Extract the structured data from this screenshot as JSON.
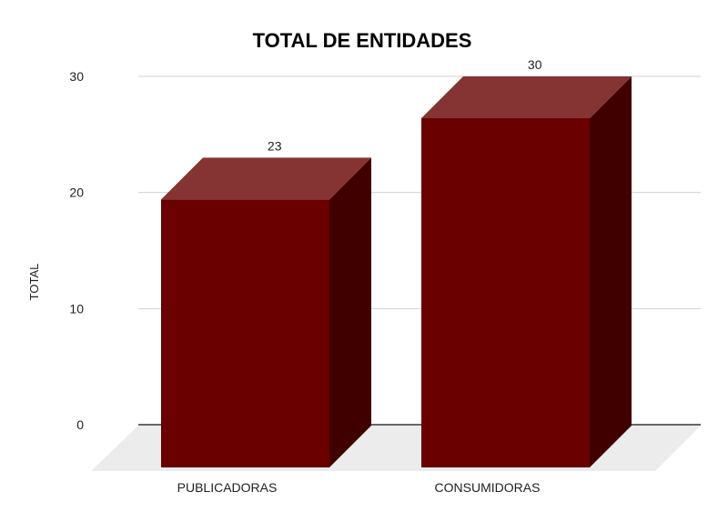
{
  "chart_data": {
    "type": "bar",
    "style": "3d",
    "title": "TOTAL DE ENTIDADES",
    "xlabel": "",
    "ylabel": "TOTAL",
    "categories": [
      "PUBLICADORAS",
      "CONSUMIDORAS"
    ],
    "values": [
      23,
      30
    ],
    "data_labels": [
      "23",
      "30"
    ],
    "ylim": [
      0,
      30
    ],
    "yticks": [
      "0",
      "10",
      "20",
      "30"
    ],
    "grid": true,
    "colors": {
      "bar_front": "#6a0000",
      "bar_top": "#863333",
      "bar_side": "#400000",
      "floor": "#ececec",
      "gridline": "#d0d0d0",
      "baseline": "#333333"
    }
  }
}
